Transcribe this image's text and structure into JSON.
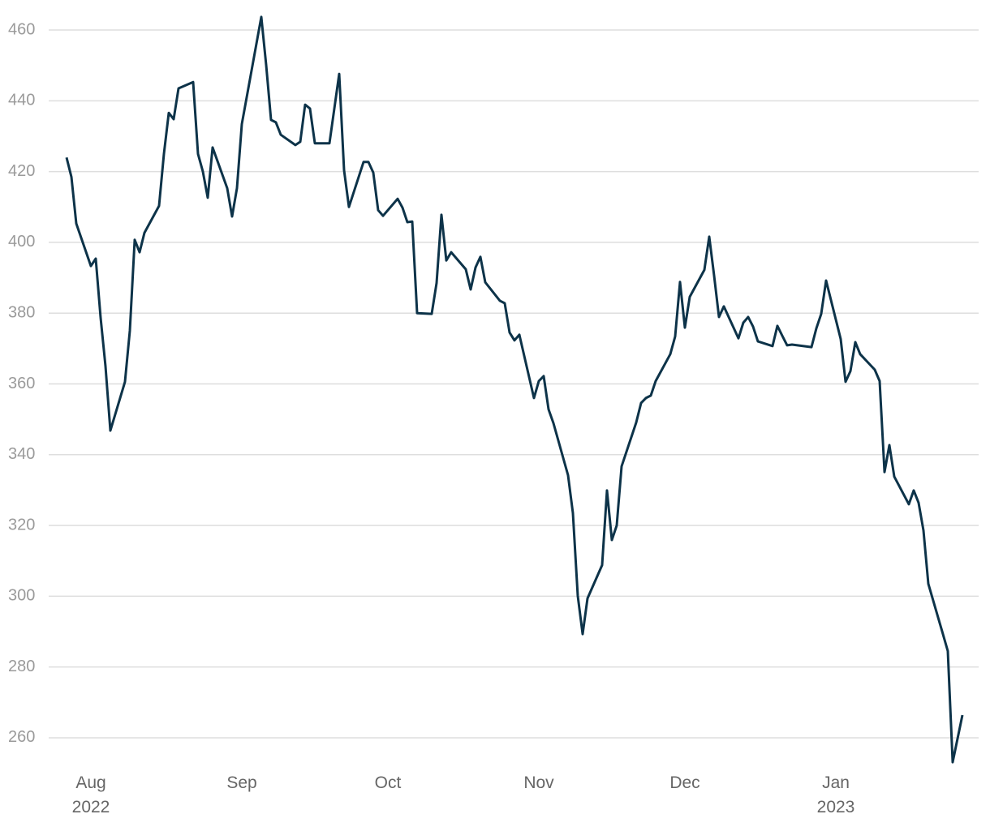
{
  "chart_data": {
    "type": "line",
    "x": [
      "2022-07-27",
      "2022-07-28",
      "2022-07-29",
      "2022-08-01",
      "2022-08-02",
      "2022-08-03",
      "2022-08-04",
      "2022-08-05",
      "2022-08-08",
      "2022-08-09",
      "2022-08-10",
      "2022-08-11",
      "2022-08-12",
      "2022-08-15",
      "2022-08-16",
      "2022-08-17",
      "2022-08-18",
      "2022-08-19",
      "2022-08-22",
      "2022-08-23",
      "2022-08-24",
      "2022-08-25",
      "2022-08-26",
      "2022-08-29",
      "2022-08-30",
      "2022-08-31",
      "2022-09-01",
      "2022-09-05",
      "2022-09-06",
      "2022-09-07",
      "2022-09-08",
      "2022-09-09",
      "2022-09-12",
      "2022-09-13",
      "2022-09-14",
      "2022-09-15",
      "2022-09-16",
      "2022-09-19",
      "2022-09-21",
      "2022-09-22",
      "2022-09-23",
      "2022-09-26",
      "2022-09-27",
      "2022-09-28",
      "2022-09-29",
      "2022-09-30",
      "2022-10-03",
      "2022-10-04",
      "2022-10-05",
      "2022-10-06",
      "2022-10-07",
      "2022-10-10",
      "2022-10-11",
      "2022-10-12",
      "2022-10-13",
      "2022-10-14",
      "2022-10-17",
      "2022-10-18",
      "2022-10-19",
      "2022-10-20",
      "2022-10-21",
      "2022-10-24",
      "2022-10-25",
      "2022-10-26",
      "2022-10-27",
      "2022-10-28",
      "2022-10-31",
      "2022-11-01",
      "2022-11-02",
      "2022-11-03",
      "2022-11-04",
      "2022-11-07",
      "2022-11-08",
      "2022-11-09",
      "2022-11-10",
      "2022-11-11",
      "2022-11-14",
      "2022-11-15",
      "2022-11-16",
      "2022-11-17",
      "2022-11-18",
      "2022-11-21",
      "2022-11-22",
      "2022-11-23",
      "2022-11-24",
      "2022-11-25",
      "2022-11-28",
      "2022-11-29",
      "2022-11-30",
      "2022-12-01",
      "2022-12-02",
      "2022-12-05",
      "2022-12-06",
      "2022-12-07",
      "2022-12-08",
      "2022-12-09",
      "2022-12-12",
      "2022-12-13",
      "2022-12-14",
      "2022-12-15",
      "2022-12-16",
      "2022-12-19",
      "2022-12-20",
      "2022-12-21",
      "2022-12-22",
      "2022-12-23",
      "2022-12-27",
      "2022-12-28",
      "2022-12-29",
      "2022-12-30",
      "2023-01-02",
      "2023-01-03",
      "2023-01-04",
      "2023-01-05",
      "2023-01-06",
      "2023-01-09",
      "2023-01-10",
      "2023-01-11",
      "2023-01-12",
      "2023-01-13",
      "2023-01-16",
      "2023-01-17",
      "2023-01-18",
      "2023-01-19",
      "2023-01-20",
      "2023-01-23",
      "2023-01-24",
      "2023-01-25",
      "2023-01-27"
    ],
    "series": [
      {
        "color": "#0d3349",
        "values": [
          424,
          418.5,
          405.3,
          393.3,
          395.4,
          378.7,
          365,
          346.8,
          360.6,
          375,
          400.7,
          397.2,
          402.7,
          410.3,
          425,
          436.6,
          434.8,
          443.5,
          445.3,
          425,
          420,
          412.6,
          426.8,
          415.3,
          407.3,
          415.3,
          433.4,
          463.7,
          450.1,
          434.6,
          433.9,
          430.4,
          427.5,
          428.4,
          438.9,
          437.8,
          428,
          428,
          447.6,
          420.4,
          410,
          422.7,
          422.7,
          419.7,
          409.1,
          407.5,
          412.3,
          409.8,
          405.7,
          405.9,
          380,
          379.8,
          388.5,
          407.8,
          394.9,
          397.2,
          392.4,
          386.7,
          392.9,
          395.9,
          388.7,
          383.5,
          382.8,
          374.5,
          372.3,
          373.9,
          356,
          360.8,
          362.2,
          352.8,
          348.9,
          334.2,
          323.5,
          300.1,
          289.3,
          299.4,
          308.8,
          329.9,
          315.9,
          320,
          336.7,
          349.1,
          354.6,
          356,
          356.7,
          360.8,
          368.4,
          373.4,
          388.8,
          375.9,
          384.6,
          392.2,
          401.6,
          390.6,
          378.9,
          381.9,
          372.9,
          377.3,
          378.9,
          376.2,
          372,
          370.7,
          376.4,
          373.6,
          370.9,
          371.1,
          370.4,
          375.7,
          379.8,
          389.2,
          372.7,
          360.6,
          363.6,
          371.8,
          368.4,
          364,
          360.8,
          335.1,
          342.7,
          333.8,
          326,
          329.9,
          326.4,
          318.6,
          303.5,
          289.3,
          284.5,
          253.1,
          266.4
        ]
      }
    ],
    "xlim": [
      "2022-07-24",
      "2023-01-30"
    ],
    "xticks": [
      {
        "value": "2022-08-01",
        "label": "Aug 2022"
      },
      {
        "value": "2022-09-01",
        "label": "Sep"
      },
      {
        "value": "2022-10-01",
        "label": "Oct"
      },
      {
        "value": "2022-11-01",
        "label": "Nov"
      },
      {
        "value": "2022-12-01",
        "label": "Dec"
      },
      {
        "value": "2023-01-01",
        "label": "Jan 2023"
      }
    ],
    "ylim": [
      250,
      465
    ],
    "yticks": [
      260,
      280,
      300,
      320,
      340,
      360,
      380,
      400,
      420,
      440,
      460
    ],
    "grid": true
  }
}
